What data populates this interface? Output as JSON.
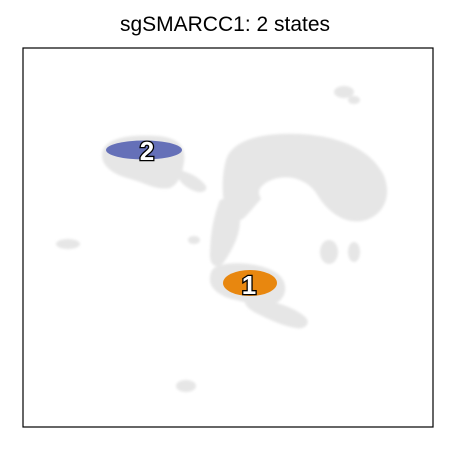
{
  "chart_data": {
    "type": "scatter",
    "title": "sgSMARCC1: 2 states",
    "xlabel": "",
    "ylabel": "",
    "axis_ticks": false,
    "grid": false,
    "legend": "none",
    "colors": {
      "background_cells": "#e6e6e6",
      "state_1": "#e8870f",
      "state_2": "#6570b8",
      "frame": "#000000"
    },
    "series": [
      {
        "name": "1",
        "label": "1",
        "color": "#e8870f"
      },
      {
        "name": "2",
        "label": "2",
        "color": "#6570b8"
      }
    ]
  }
}
